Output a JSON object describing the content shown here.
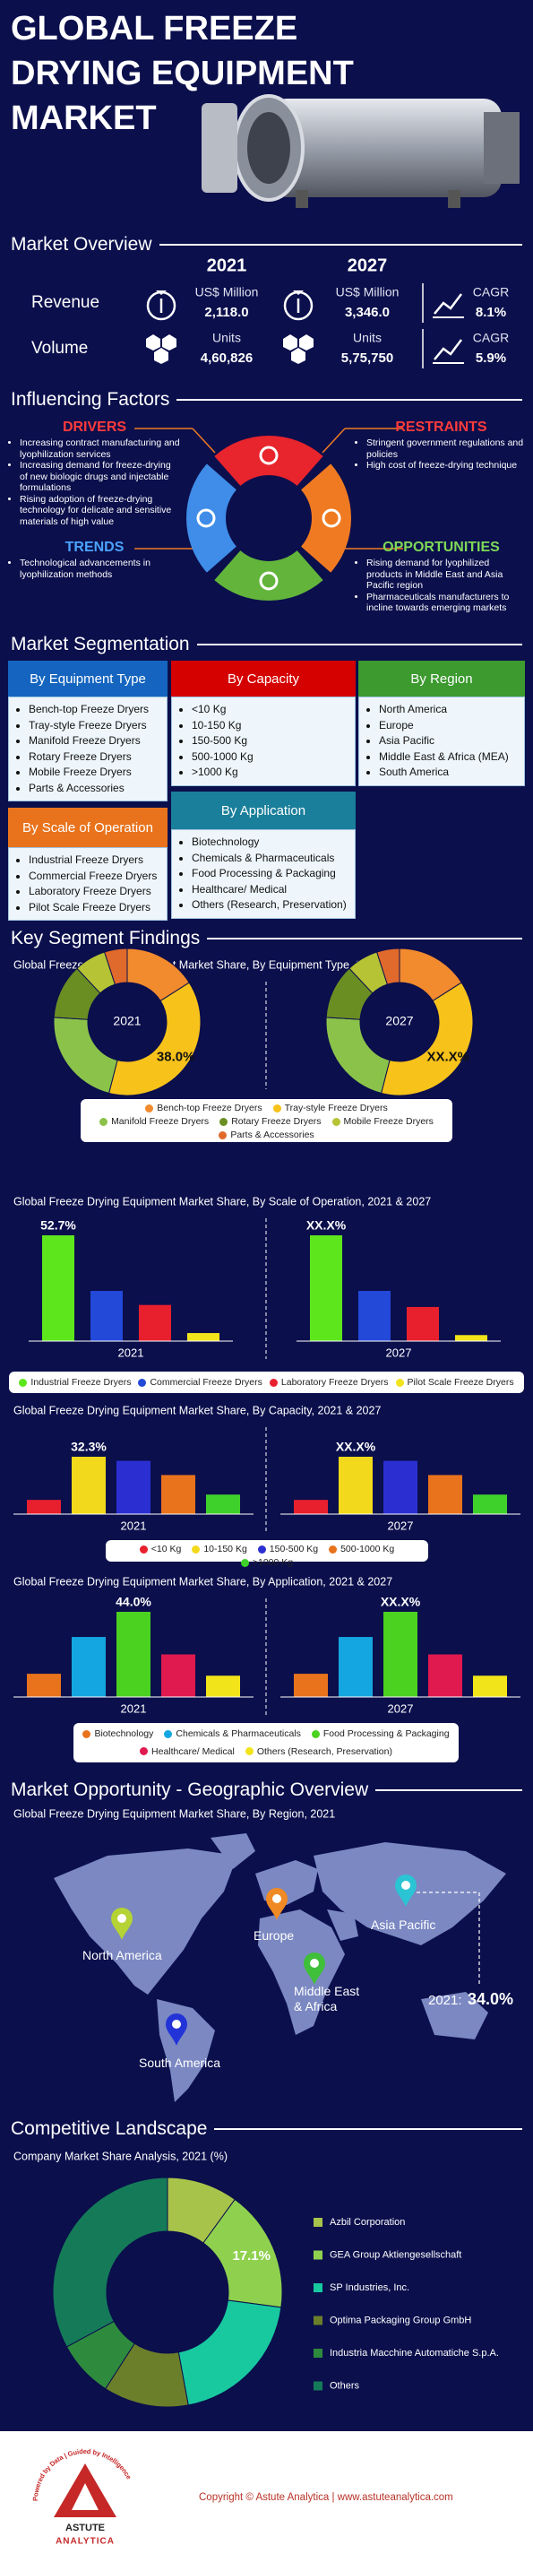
{
  "header": {
    "title_lines": [
      "GLOBAL FREEZE",
      "DRYING EQUIPMENT",
      "MARKET"
    ]
  },
  "overview": {
    "heading": "Market Overview",
    "years": [
      "2021",
      "2027"
    ],
    "rows": [
      {
        "label": "Revenue",
        "unit": "US$ Million",
        "values": [
          "2,118.0",
          "3,346.0"
        ],
        "cagr_label": "CAGR",
        "cagr": "8.1%"
      },
      {
        "label": "Volume",
        "unit": "Units",
        "values": [
          "4,60,826",
          "5,75,750"
        ],
        "cagr_label": "CAGR",
        "cagr": "5.9%"
      }
    ]
  },
  "factors": {
    "heading": "Influencing Factors",
    "drivers": {
      "title": "DRIVERS",
      "items": [
        "Increasing contract manufacturing and lyophilization services",
        "Increasing demand for freeze-drying of new biologic drugs and injectable formulations",
        "Rising adoption of freeze-drying technology for delicate and sensitive materials of high value"
      ]
    },
    "trends": {
      "title": "TRENDS",
      "items": [
        "Technological advancements in lyophilization methods"
      ]
    },
    "restraints": {
      "title": "RESTRAINTS",
      "items": [
        "Stringent government regulations and policies",
        "High cost of freeze-drying technique"
      ]
    },
    "opportunities": {
      "title": "OPPORTUNITIES",
      "items": [
        "Rising demand for lyophilized products in Middle East and Asia Pacific region",
        "Pharmaceuticals manufacturers to incline towards emerging markets"
      ]
    }
  },
  "segmentation": {
    "heading": "Market Segmentation",
    "groups": [
      {
        "title": "By Equipment Type",
        "items": [
          "Bench-top Freeze Dryers",
          "Tray-style Freeze Dryers",
          "Manifold Freeze Dryers",
          "Rotary Freeze Dryers",
          "Mobile Freeze Dryers",
          "Parts & Accessories"
        ]
      },
      {
        "title": "By Capacity",
        "items": [
          "<10 Kg",
          "10-150 Kg",
          "150-500 Kg",
          "500-1000 Kg",
          ">1000 Kg"
        ]
      },
      {
        "title": "By Region",
        "items": [
          "North America",
          "Europe",
          "Asia Pacific",
          "Middle East & Africa (MEA)",
          "South America"
        ]
      },
      {
        "title": "By Scale of Operation",
        "items": [
          "Industrial Freeze Dryers",
          "Commercial Freeze Dryers",
          "Laboratory Freeze Dryers",
          "Pilot Scale Freeze Dryers"
        ]
      },
      {
        "title": "By Application",
        "items": [
          "Biotechnology",
          "Chemicals & Pharmaceuticals",
          "Food Processing & Packaging",
          "Healthcare/ Medical",
          "Others (Research, Preservation)"
        ]
      }
    ]
  },
  "findings": {
    "heading": "Key Segment Findings"
  },
  "chart_data": [
    {
      "type": "pie",
      "title": "Global Freeze Drying Equipment Market Share, By Equipment Type, 2021 & 2027",
      "categories": [
        "Bench-top Freeze Dryers",
        "Tray-style Freeze Dryers",
        "Manifold Freeze Dryers",
        "Rotary Freeze Dryers",
        "Mobile Freeze Dryers",
        "Parts & Accessories"
      ],
      "colors": [
        "#f28a2e",
        "#f7c21a",
        "#8bc34a",
        "#6b8e23",
        "#b5c334",
        "#e06a2c"
      ],
      "series": [
        {
          "name": "2021",
          "values": [
            16,
            38,
            22,
            12,
            7,
            5
          ],
          "value_labels": [
            null,
            "38.0%",
            null,
            null,
            null,
            null
          ]
        },
        {
          "name": "2027",
          "values": [
            16,
            38,
            22,
            12,
            7,
            5
          ],
          "value_labels": [
            null,
            "XX.X%",
            null,
            null,
            null,
            null
          ]
        }
      ]
    },
    {
      "type": "bar",
      "title": "Global Freeze Drying Equipment Market Share, By Scale of Operation, 2021 & 2027",
      "categories": [
        "Industrial Freeze Dryers",
        "Commercial Freeze Dryers",
        "Laboratory Freeze Dryers",
        "Pilot Scale Freeze Dryers"
      ],
      "colors": [
        "#5ee61d",
        "#2349d9",
        "#e8202e",
        "#f2e41b"
      ],
      "series": [
        {
          "name": "2021",
          "values": [
            52.7,
            25,
            18,
            4
          ],
          "value_labels": [
            "52.7%",
            null,
            null,
            null
          ]
        },
        {
          "name": "2027",
          "values": [
            52.7,
            25,
            17,
            3
          ],
          "value_labels": [
            "XX.X%",
            null,
            null,
            null
          ]
        }
      ]
    },
    {
      "type": "bar",
      "title": "Global Freeze Drying Equipment Market Share, By Capacity, 2021 & 2027",
      "categories": [
        "<10 Kg",
        "10-150 Kg",
        "150-500 Kg",
        "500-1000 Kg",
        ">1000 Kg"
      ],
      "colors": [
        "#e8202e",
        "#f2d91b",
        "#2b2fd1",
        "#e8731c",
        "#3fd12b"
      ],
      "series": [
        {
          "name": "2021",
          "values": [
            8,
            32.3,
            30,
            22,
            11
          ],
          "value_labels": [
            null,
            "32.3%",
            null,
            null,
            null
          ]
        },
        {
          "name": "2027",
          "values": [
            8,
            32.3,
            30,
            22,
            11
          ],
          "value_labels": [
            null,
            "XX.X%",
            null,
            null,
            null
          ]
        }
      ]
    },
    {
      "type": "bar",
      "title": "Global Freeze Drying Equipment Market Share, By Application, 2021 & 2027",
      "categories": [
        "Biotechnology",
        "Chemicals & Pharmaceuticals",
        "Food Processing & Packaging",
        "Healthcare/ Medical",
        "Others (Research, Preservation)"
      ],
      "colors": [
        "#e8731c",
        "#14a6e0",
        "#4bd11f",
        "#e0194f",
        "#f2e41b"
      ],
      "series": [
        {
          "name": "2021",
          "values": [
            12,
            31,
            44,
            22,
            11
          ],
          "value_labels": [
            null,
            null,
            "44.0%",
            null,
            null
          ]
        },
        {
          "name": "2027",
          "values": [
            12,
            31,
            44,
            22,
            11
          ],
          "value_labels": [
            null,
            null,
            "XX.X%",
            null,
            null
          ]
        }
      ]
    },
    {
      "type": "pie",
      "title": "Company Market Share Analysis, 2021 (%)",
      "categories": [
        "Azbil Corporation",
        "GEA Group Aktiengesellschaft",
        "SP Industries, Inc.",
        "Optima Packaging Group GmbH",
        "Industria Macchine Automatiche S.p.A.",
        "Others"
      ],
      "colors": [
        "#a8c34a",
        "#8fd14f",
        "#18c9a0",
        "#6b7f2a",
        "#2e8b3e",
        "#157a58"
      ],
      "values": [
        10,
        17.1,
        20,
        12,
        8,
        32.9
      ],
      "value_labels": [
        null,
        "17.1%",
        null,
        null,
        null,
        null
      ]
    }
  ],
  "geography": {
    "heading": "Market Opportunity - Geographic Overview",
    "subtitle": "Global Freeze Drying Equipment Market Share, By Region, 2021",
    "regions": [
      "North America",
      "Europe",
      "Middle East & Africa",
      "Asia Pacific",
      "South America"
    ],
    "region_colors": [
      "#b5d334",
      "#f08a24",
      "#3fbf3a",
      "#2bc4d4",
      "#2233d8"
    ],
    "highlight_year": "2021:",
    "highlight_value": "34.0%"
  },
  "competitive": {
    "heading": "Competitive Landscape"
  },
  "footer": {
    "tagline": "Powered by Data | Guided by Intelligence",
    "logo_top": "ASTUTE",
    "logo_bottom": "ANALYTICA",
    "copyright": "Copyright © Astute Analytica | www.astuteanalytica.com"
  }
}
